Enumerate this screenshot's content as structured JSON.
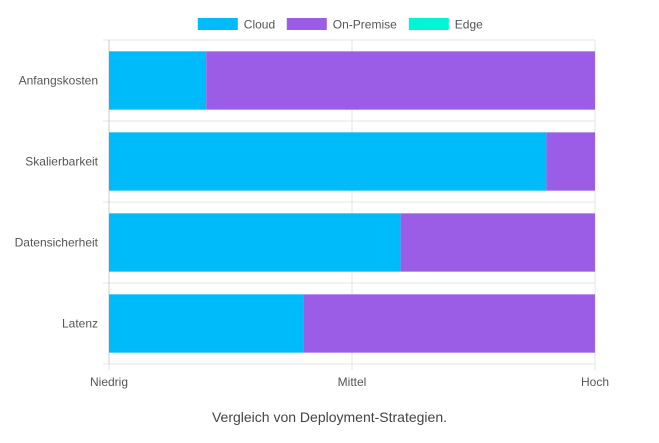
{
  "chart_data": {
    "type": "bar",
    "orientation": "horizontal",
    "stacked": true,
    "categories": [
      "Anfangskosten",
      "Skalierbarkeit",
      "Datensicherheit",
      "Latenz"
    ],
    "series": [
      {
        "name": "Cloud",
        "color": "#00bbf9",
        "values": [
          0.2,
          0.9,
          0.6,
          0.4
        ]
      },
      {
        "name": "On-Premise",
        "color": "#9b5de5",
        "values": [
          0.8,
          0.1,
          0.4,
          0.6
        ]
      },
      {
        "name": "Edge",
        "color": "#00f5d4",
        "values": [
          0,
          0,
          0,
          0
        ]
      }
    ],
    "x_ticks": [
      {
        "value": 0,
        "label": "Niedrig"
      },
      {
        "value": 0.5,
        "label": "Mittel"
      },
      {
        "value": 1,
        "label": "Hoch"
      }
    ],
    "xlim": [
      0,
      1
    ],
    "grid": true,
    "legend_position": "top"
  },
  "caption": "Vergleich von Deployment-Strategien."
}
